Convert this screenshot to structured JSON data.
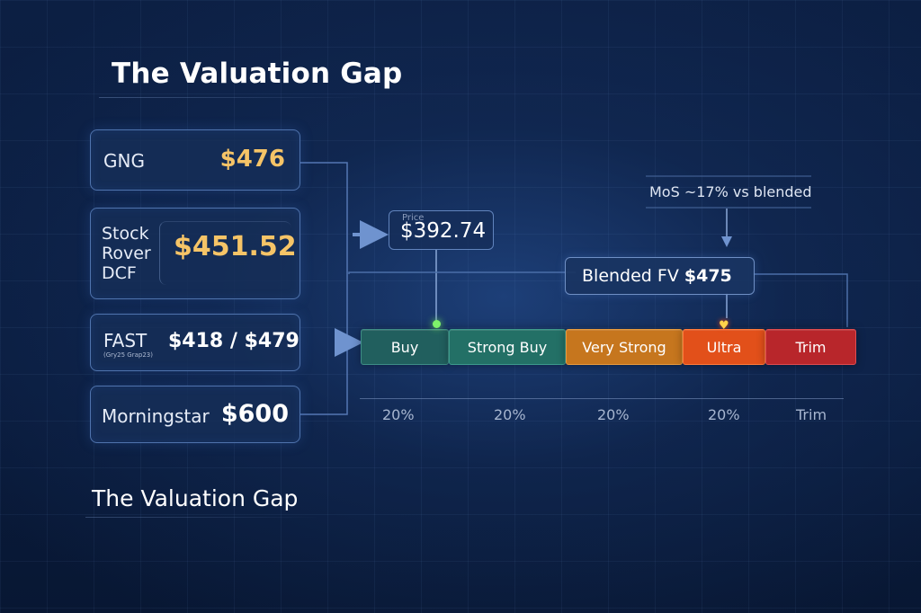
{
  "title_top": "The Valuation Gap",
  "title_bottom": "The Valuation Gap",
  "sources": [
    {
      "label": "GNG",
      "value": "$476"
    },
    {
      "label": "Stock Rover DCF",
      "value": "$451.52"
    },
    {
      "label": "FAST",
      "sub": "(Gry25 Grap23)",
      "value": "$418 / $479"
    },
    {
      "label": "Morningstar",
      "value": "$600"
    }
  ],
  "price": {
    "caption": "Price",
    "value": "$392.74"
  },
  "mos_text": "MoS ~17% vs blended",
  "blended": {
    "label": "Blended FV ",
    "value": "$475"
  },
  "zones": [
    "Buy",
    "Strong Buy",
    "Very Strong",
    "Ultra",
    "Trim"
  ],
  "zone_ticks": [
    "20%",
    "20%",
    "20%",
    "20%",
    "Trim"
  ],
  "colors": {
    "background": "#0c1f43",
    "card_border": "#4f73ad",
    "highlight_value": "#f6c467",
    "buy": "#215f5e",
    "strong_buy": "#237066",
    "very_strong": "#c6761e",
    "ultra": "#e2501a",
    "trim": "#b8262b",
    "price_marker": "#7ef26a"
  }
}
